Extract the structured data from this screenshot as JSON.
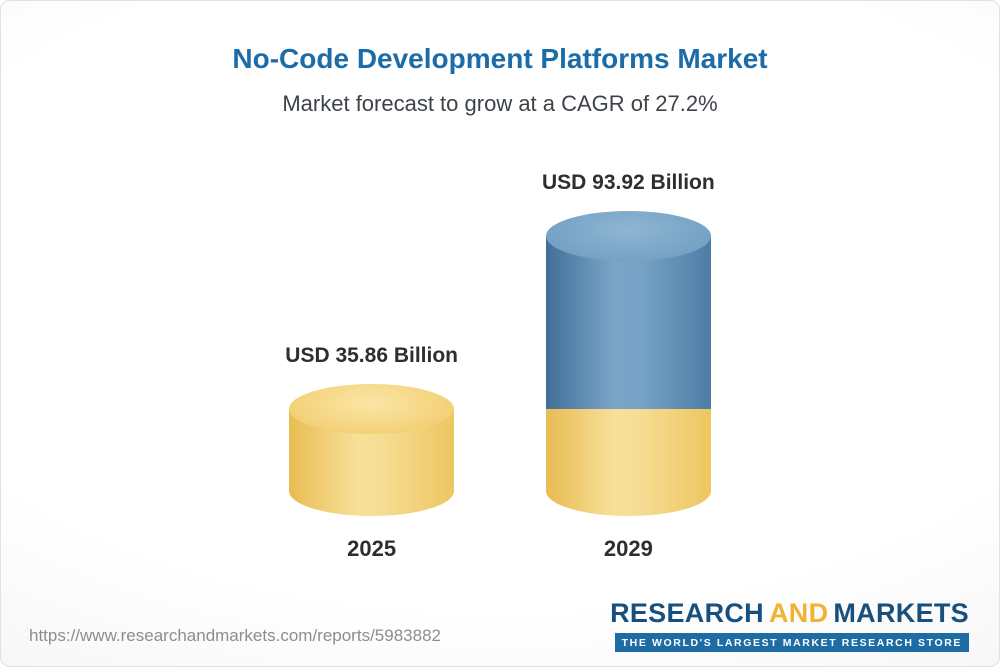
{
  "chart_data": {
    "type": "bar",
    "variant": "3d-stacked-cylinder",
    "title": "No-Code Development Platforms Market",
    "subtitle": "Market forecast to grow at a CAGR of 27.2%",
    "cagr_percent": 27.2,
    "unit": "USD Billion",
    "categories": [
      "2025",
      "2029"
    ],
    "values": [
      35.86,
      93.92
    ],
    "value_labels": [
      "USD 35.86 Billion",
      "USD 93.92 Billion"
    ],
    "series": [
      {
        "name": "2025 base",
        "color": "#F2CA62",
        "values": [
          35.86,
          35.86
        ]
      },
      {
        "name": "growth to 2029",
        "color": "#5C89B0",
        "values": [
          0,
          58.06
        ]
      }
    ],
    "colors": {
      "base_gold": "#F2CA62",
      "growth_blue": "#5C89B0",
      "title_blue": "#1B6CA8"
    },
    "legend": "none",
    "gridlines": false,
    "ylim": [
      0,
      100
    ]
  },
  "footer": {
    "url": "https://www.researchandmarkets.com/reports/5983882",
    "logo": {
      "research": "RESEARCH",
      "and": "AND",
      "markets": "MARKETS",
      "tagline": "THE WORLD'S LARGEST MARKET RESEARCH STORE"
    }
  }
}
